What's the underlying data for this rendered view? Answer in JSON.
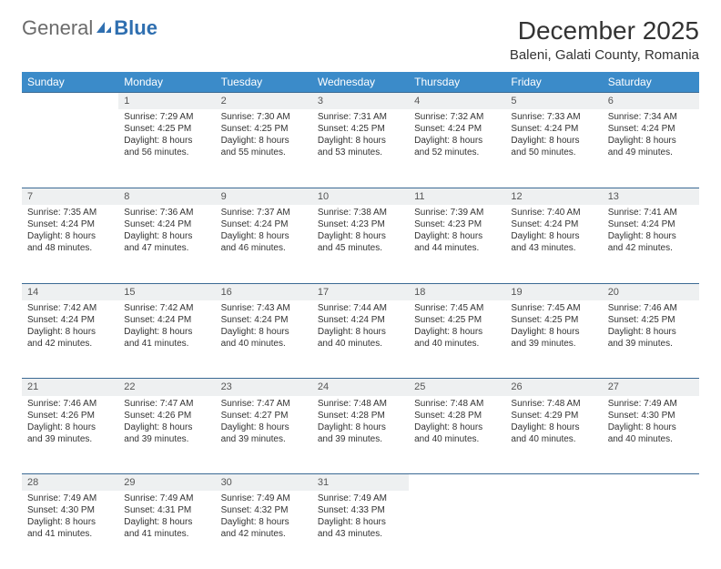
{
  "logo": {
    "text1": "General",
    "text2": "Blue"
  },
  "title": "December 2025",
  "location": "Baleni, Galati County, Romania",
  "header_bg": "#3b8bc9",
  "border_color": "#3b6a94",
  "daynum_bg": "#eef0f1",
  "weekdays": [
    "Sunday",
    "Monday",
    "Tuesday",
    "Wednesday",
    "Thursday",
    "Friday",
    "Saturday"
  ],
  "weeks": [
    [
      null,
      {
        "n": "1",
        "sr": "7:29 AM",
        "ss": "4:25 PM",
        "dl": "8 hours and 56 minutes."
      },
      {
        "n": "2",
        "sr": "7:30 AM",
        "ss": "4:25 PM",
        "dl": "8 hours and 55 minutes."
      },
      {
        "n": "3",
        "sr": "7:31 AM",
        "ss": "4:25 PM",
        "dl": "8 hours and 53 minutes."
      },
      {
        "n": "4",
        "sr": "7:32 AM",
        "ss": "4:24 PM",
        "dl": "8 hours and 52 minutes."
      },
      {
        "n": "5",
        "sr": "7:33 AM",
        "ss": "4:24 PM",
        "dl": "8 hours and 50 minutes."
      },
      {
        "n": "6",
        "sr": "7:34 AM",
        "ss": "4:24 PM",
        "dl": "8 hours and 49 minutes."
      }
    ],
    [
      {
        "n": "7",
        "sr": "7:35 AM",
        "ss": "4:24 PM",
        "dl": "8 hours and 48 minutes."
      },
      {
        "n": "8",
        "sr": "7:36 AM",
        "ss": "4:24 PM",
        "dl": "8 hours and 47 minutes."
      },
      {
        "n": "9",
        "sr": "7:37 AM",
        "ss": "4:24 PM",
        "dl": "8 hours and 46 minutes."
      },
      {
        "n": "10",
        "sr": "7:38 AM",
        "ss": "4:23 PM",
        "dl": "8 hours and 45 minutes."
      },
      {
        "n": "11",
        "sr": "7:39 AM",
        "ss": "4:23 PM",
        "dl": "8 hours and 44 minutes."
      },
      {
        "n": "12",
        "sr": "7:40 AM",
        "ss": "4:24 PM",
        "dl": "8 hours and 43 minutes."
      },
      {
        "n": "13",
        "sr": "7:41 AM",
        "ss": "4:24 PM",
        "dl": "8 hours and 42 minutes."
      }
    ],
    [
      {
        "n": "14",
        "sr": "7:42 AM",
        "ss": "4:24 PM",
        "dl": "8 hours and 42 minutes."
      },
      {
        "n": "15",
        "sr": "7:42 AM",
        "ss": "4:24 PM",
        "dl": "8 hours and 41 minutes."
      },
      {
        "n": "16",
        "sr": "7:43 AM",
        "ss": "4:24 PM",
        "dl": "8 hours and 40 minutes."
      },
      {
        "n": "17",
        "sr": "7:44 AM",
        "ss": "4:24 PM",
        "dl": "8 hours and 40 minutes."
      },
      {
        "n": "18",
        "sr": "7:45 AM",
        "ss": "4:25 PM",
        "dl": "8 hours and 40 minutes."
      },
      {
        "n": "19",
        "sr": "7:45 AM",
        "ss": "4:25 PM",
        "dl": "8 hours and 39 minutes."
      },
      {
        "n": "20",
        "sr": "7:46 AM",
        "ss": "4:25 PM",
        "dl": "8 hours and 39 minutes."
      }
    ],
    [
      {
        "n": "21",
        "sr": "7:46 AM",
        "ss": "4:26 PM",
        "dl": "8 hours and 39 minutes."
      },
      {
        "n": "22",
        "sr": "7:47 AM",
        "ss": "4:26 PM",
        "dl": "8 hours and 39 minutes."
      },
      {
        "n": "23",
        "sr": "7:47 AM",
        "ss": "4:27 PM",
        "dl": "8 hours and 39 minutes."
      },
      {
        "n": "24",
        "sr": "7:48 AM",
        "ss": "4:28 PM",
        "dl": "8 hours and 39 minutes."
      },
      {
        "n": "25",
        "sr": "7:48 AM",
        "ss": "4:28 PM",
        "dl": "8 hours and 40 minutes."
      },
      {
        "n": "26",
        "sr": "7:48 AM",
        "ss": "4:29 PM",
        "dl": "8 hours and 40 minutes."
      },
      {
        "n": "27",
        "sr": "7:49 AM",
        "ss": "4:30 PM",
        "dl": "8 hours and 40 minutes."
      }
    ],
    [
      {
        "n": "28",
        "sr": "7:49 AM",
        "ss": "4:30 PM",
        "dl": "8 hours and 41 minutes."
      },
      {
        "n": "29",
        "sr": "7:49 AM",
        "ss": "4:31 PM",
        "dl": "8 hours and 41 minutes."
      },
      {
        "n": "30",
        "sr": "7:49 AM",
        "ss": "4:32 PM",
        "dl": "8 hours and 42 minutes."
      },
      {
        "n": "31",
        "sr": "7:49 AM",
        "ss": "4:33 PM",
        "dl": "8 hours and 43 minutes."
      },
      null,
      null,
      null
    ]
  ],
  "labels": {
    "sunrise": "Sunrise:",
    "sunset": "Sunset:",
    "daylight": "Daylight:"
  }
}
